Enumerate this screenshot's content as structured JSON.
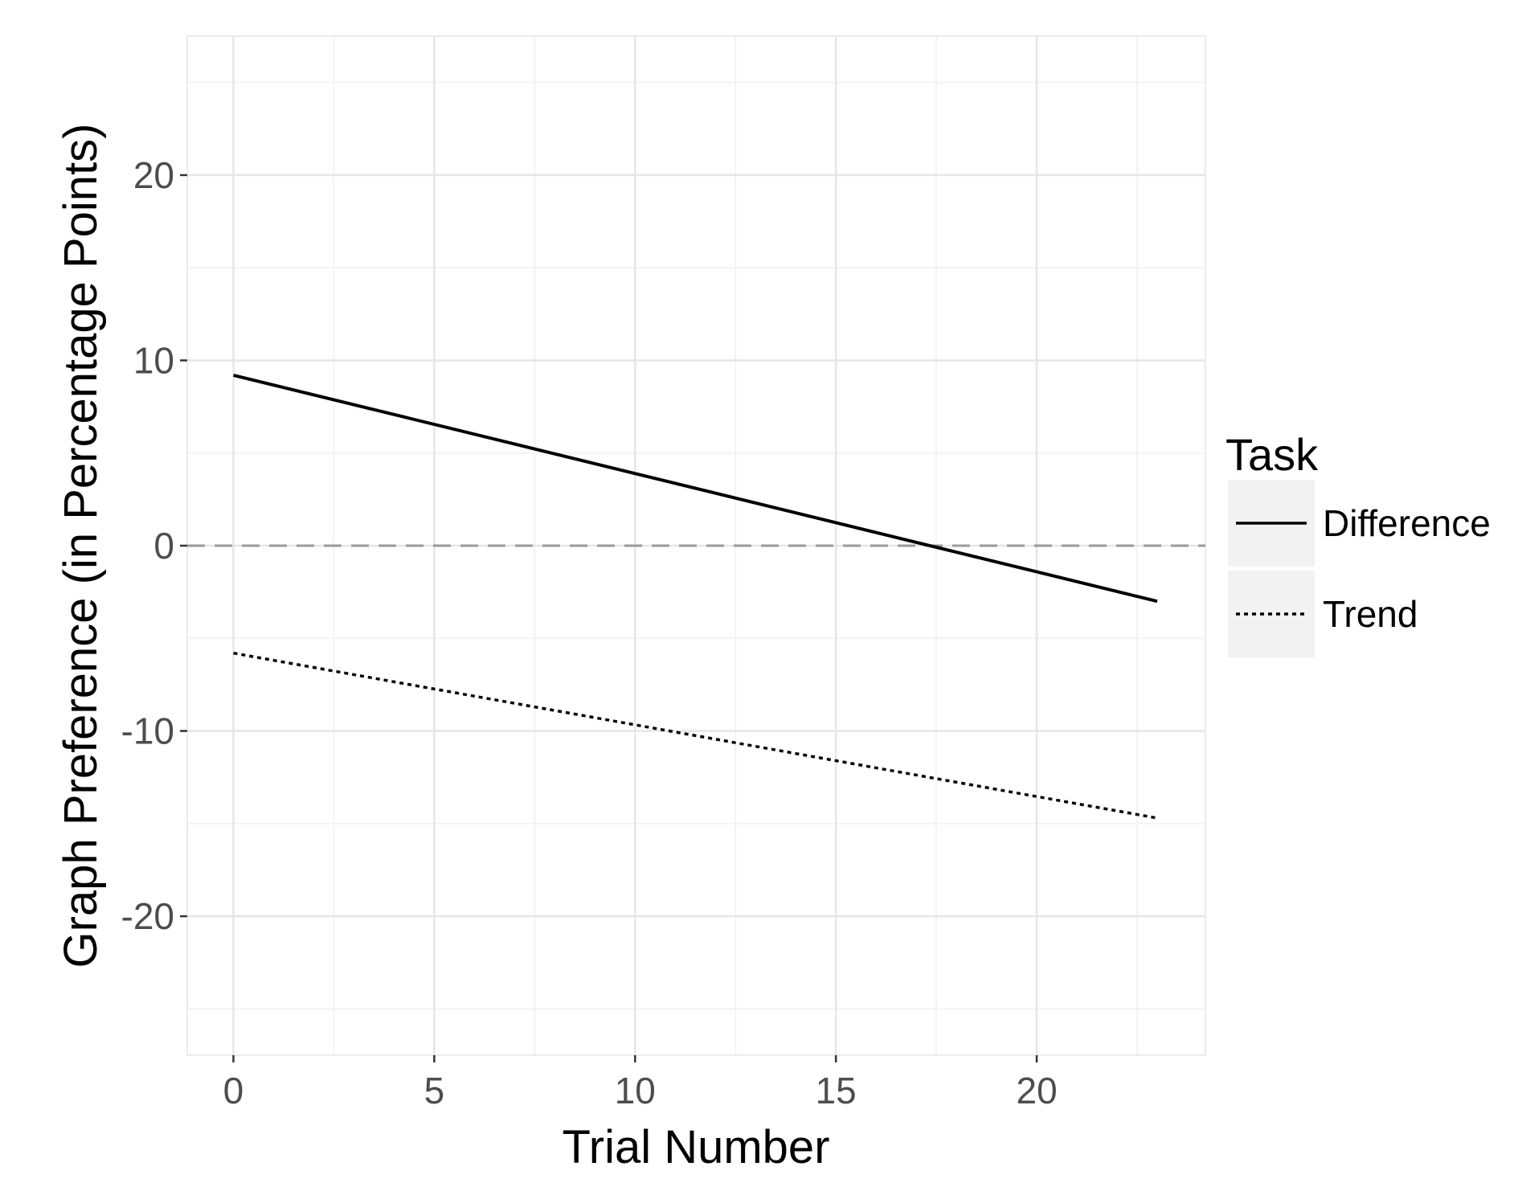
{
  "chart_data": {
    "type": "line",
    "xlabel": "Trial Number",
    "ylabel": "Graph Preference (in Percentage Points)",
    "xlim": [
      -1.15,
      24.2
    ],
    "ylim": [
      -27.5,
      27.5
    ],
    "x_ticks": [
      0,
      5,
      10,
      15,
      20
    ],
    "y_ticks": [
      -20,
      -10,
      0,
      10,
      20
    ],
    "grid": true,
    "reference_line": {
      "y": 0,
      "style": "dashed",
      "color": "#999999"
    },
    "legend": {
      "title": "Task",
      "position": "right",
      "entries": [
        {
          "label": "Difference",
          "style": "solid"
        },
        {
          "label": "Trend",
          "style": "dotted"
        }
      ]
    },
    "series": [
      {
        "name": "Difference",
        "style": "solid",
        "color": "#000000",
        "x": [
          0,
          23
        ],
        "y": [
          9.2,
          -3.0
        ]
      },
      {
        "name": "Trend",
        "style": "dotted",
        "color": "#000000",
        "x": [
          0,
          23
        ],
        "y": [
          -5.8,
          -14.7
        ]
      }
    ]
  }
}
